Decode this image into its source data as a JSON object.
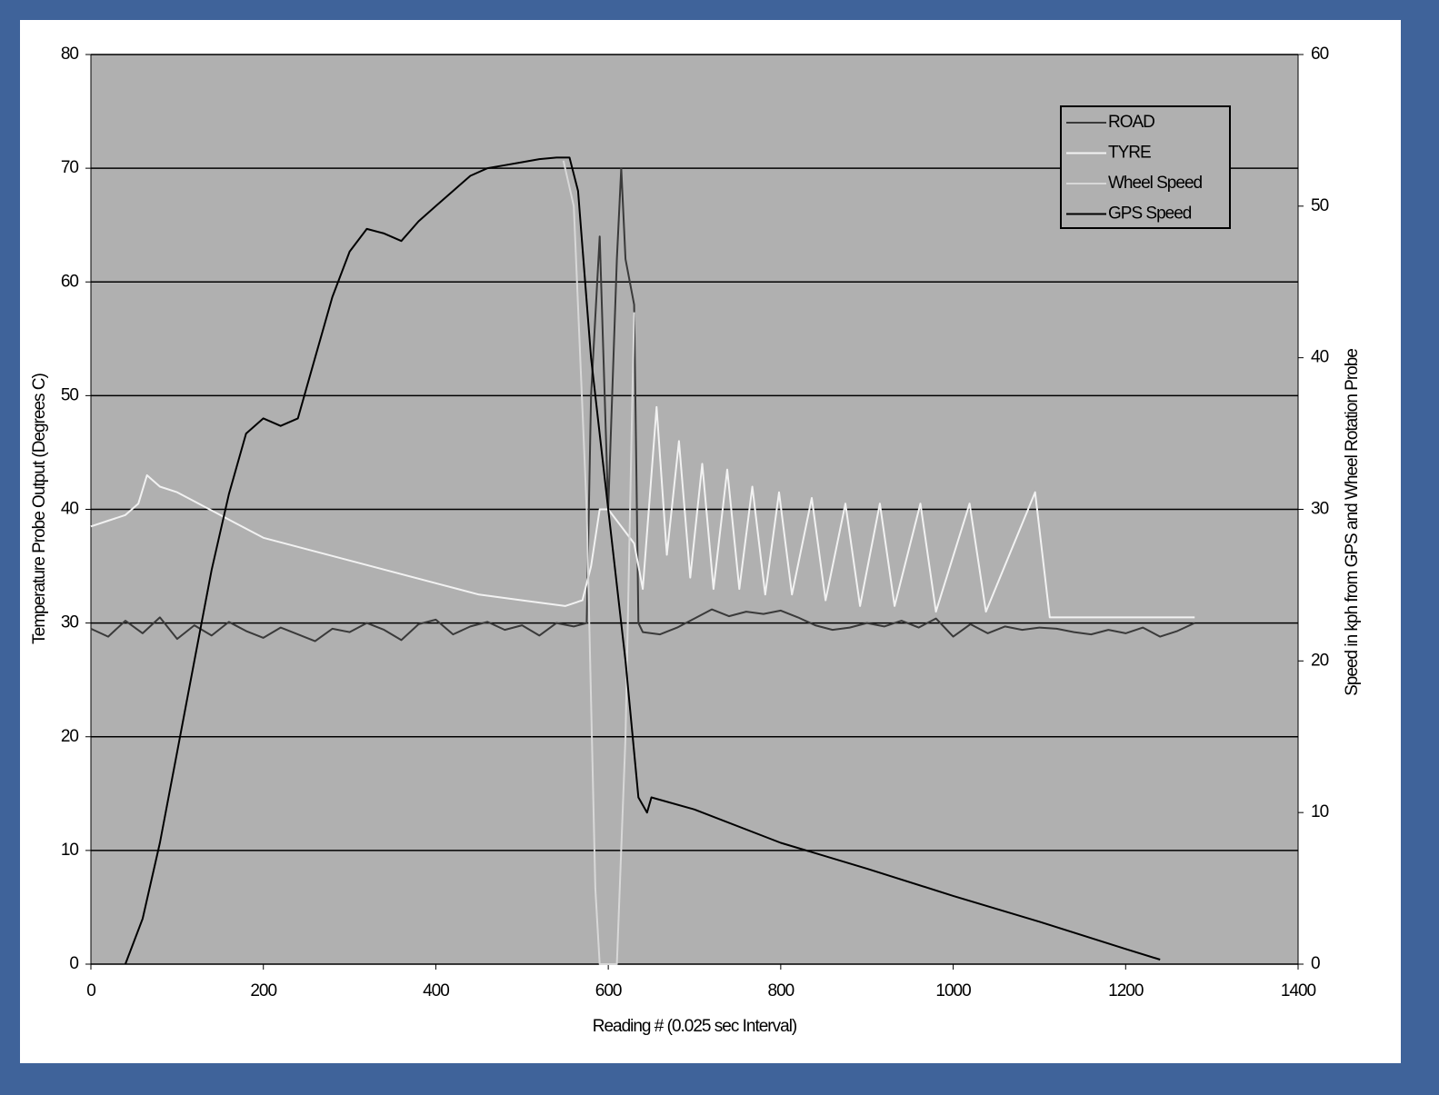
{
  "chart_data": {
    "type": "line",
    "xlabel": "Reading # (0.025 sec Interval)",
    "ylabel": "Temperature Probe Output (Degrees C)",
    "y2label": "Speed in kph from GPS and Wheel Rotation Probe",
    "xlim": [
      0,
      1400
    ],
    "xticks": [
      0,
      200,
      400,
      600,
      800,
      1000,
      1200,
      1400
    ],
    "ylim": [
      0,
      80
    ],
    "yticks": [
      0,
      10,
      20,
      30,
      40,
      50,
      60,
      70,
      80
    ],
    "y2lim": [
      0,
      60
    ],
    "y2ticks": [
      0,
      10,
      20,
      30,
      40,
      50,
      60
    ],
    "grid": true,
    "legend": "upper right",
    "background": "#b0b0b0",
    "series": [
      {
        "name": "ROAD",
        "color": "#3a3a3a",
        "x": [
          0,
          20,
          40,
          60,
          80,
          100,
          120,
          140,
          160,
          180,
          200,
          220,
          240,
          260,
          280,
          300,
          320,
          340,
          360,
          380,
          400,
          420,
          440,
          460,
          480,
          500,
          520,
          540,
          560,
          575,
          580,
          590,
          600,
          610,
          615,
          620,
          630,
          635,
          640,
          660,
          680,
          700,
          720,
          740,
          760,
          780,
          800,
          820,
          840,
          860,
          880,
          900,
          920,
          940,
          960,
          980,
          1000,
          1020,
          1040,
          1060,
          1080,
          1100,
          1120,
          1140,
          1160,
          1180,
          1200,
          1220,
          1240,
          1260,
          1280
        ],
        "values": [
          29.5,
          28.8,
          30.2,
          29.1,
          30.5,
          28.6,
          29.8,
          28.9,
          30.1,
          29.3,
          28.7,
          29.6,
          29.0,
          28.4,
          29.5,
          29.2,
          30.0,
          29.4,
          28.5,
          29.9,
          30.3,
          29.0,
          29.7,
          30.1,
          29.4,
          29.8,
          28.9,
          30.0,
          29.7,
          30,
          50,
          64,
          40,
          62,
          70,
          62,
          58,
          30,
          29.2,
          29.0,
          29.6,
          30.4,
          31.2,
          30.6,
          31.0,
          30.8,
          31.1,
          30.5,
          29.8,
          29.4,
          29.6,
          30.0,
          29.7,
          30.2,
          29.6,
          30.4,
          28.8,
          29.9,
          29.1,
          29.7,
          29.4,
          29.6,
          29.5,
          29.2,
          29.0,
          29.4,
          29.1,
          29.6,
          28.8,
          29.3,
          30.0
        ]
      },
      {
        "name": "TYRE",
        "color": "#f2f2f2",
        "x": [
          0,
          20,
          40,
          55,
          65,
          80,
          100,
          150,
          200,
          250,
          300,
          350,
          400,
          450,
          500,
          550,
          570,
          580,
          590,
          600,
          620,
          630,
          640,
          656,
          668,
          682,
          695,
          709,
          722,
          738,
          752,
          767,
          782,
          798,
          813,
          836,
          852,
          875,
          892,
          915,
          932,
          962,
          980,
          1019,
          1038,
          1095,
          1112,
          1200,
          1280
        ],
        "values": [
          38.5,
          39,
          39.5,
          40.5,
          43,
          42,
          41.5,
          39.5,
          37.5,
          36.5,
          35.5,
          34.5,
          33.5,
          32.5,
          32,
          31.5,
          32,
          35,
          40,
          40,
          38,
          37,
          33,
          49,
          36,
          46,
          34,
          44,
          33,
          43.5,
          33,
          42,
          32.5,
          41.5,
          32.5,
          41,
          32,
          40.5,
          31.5,
          40.5,
          31.5,
          40.5,
          31,
          40.5,
          31,
          41.5,
          30.5,
          30.5,
          30.5
        ]
      },
      {
        "name": "Wheel Speed",
        "color": "#d8d8d8",
        "axis": "y2",
        "x": [
          548,
          560,
          575,
          585,
          590,
          610,
          620,
          627,
          630
        ],
        "values": [
          53,
          50,
          30,
          5,
          0,
          0,
          15,
          35,
          43
        ]
      },
      {
        "name": "GPS Speed",
        "color": "#000000",
        "axis": "y2",
        "x": [
          40,
          60,
          80,
          100,
          120,
          140,
          160,
          180,
          200,
          220,
          240,
          260,
          280,
          300,
          320,
          340,
          360,
          380,
          400,
          420,
          440,
          460,
          480,
          500,
          520,
          540,
          555,
          565,
          580,
          600,
          620,
          635,
          645,
          650,
          700,
          800,
          900,
          1000,
          1100,
          1200,
          1240
        ],
        "values": [
          0,
          3,
          8,
          14,
          20,
          26,
          31,
          35,
          36,
          35.5,
          36,
          40,
          44,
          47,
          48.5,
          48.2,
          47.7,
          49,
          50,
          51,
          52,
          52.5,
          52.7,
          52.9,
          53.1,
          53.2,
          53.2,
          51,
          40,
          30,
          20,
          11,
          10,
          11,
          10.2,
          8,
          6.3,
          4.5,
          2.8,
          1,
          0.3
        ]
      }
    ]
  }
}
